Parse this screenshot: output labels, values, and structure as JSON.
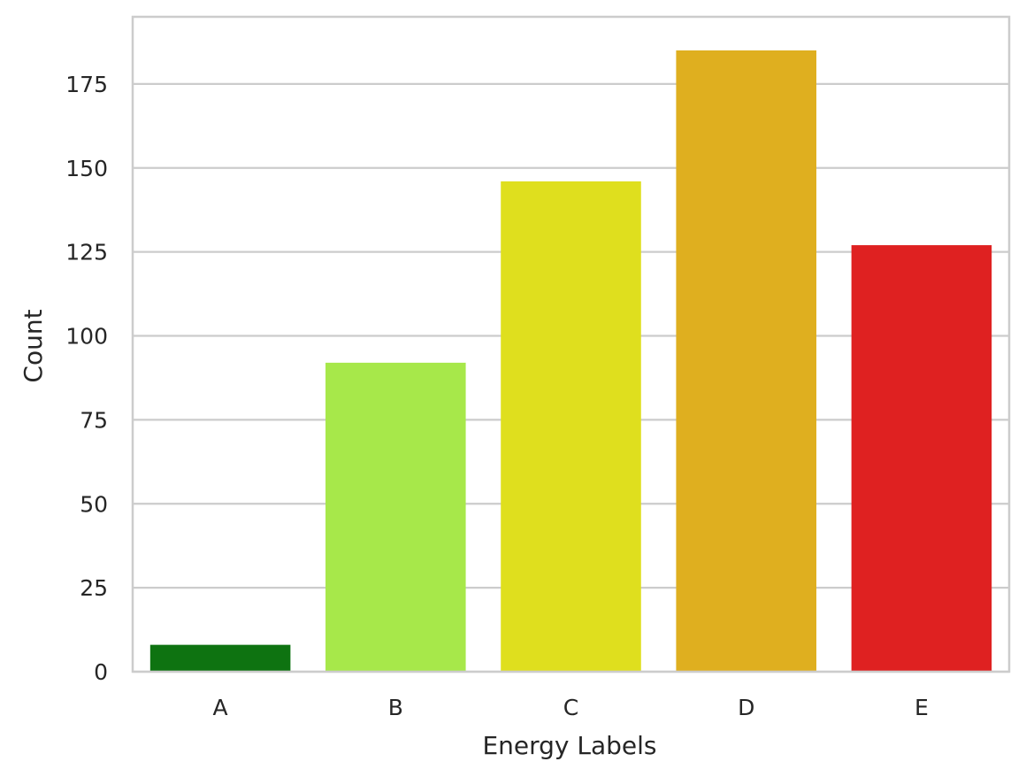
{
  "chart_data": {
    "type": "bar",
    "categories": [
      "A",
      "B",
      "C",
      "D",
      "E"
    ],
    "values": [
      8,
      92,
      146,
      185,
      127
    ],
    "colors": [
      "#0e7311",
      "#a7e84a",
      "#dfdf1e",
      "#dfaf1f",
      "#df2121"
    ],
    "xlabel": "Energy Labels",
    "ylabel": "Count",
    "ylim": [
      0,
      195
    ],
    "yticks": [
      0,
      25,
      50,
      75,
      100,
      125,
      150,
      175
    ],
    "grid": "horizontal",
    "background": "#ffffff",
    "grid_color": "#cccccc",
    "text_color": "#262626"
  }
}
